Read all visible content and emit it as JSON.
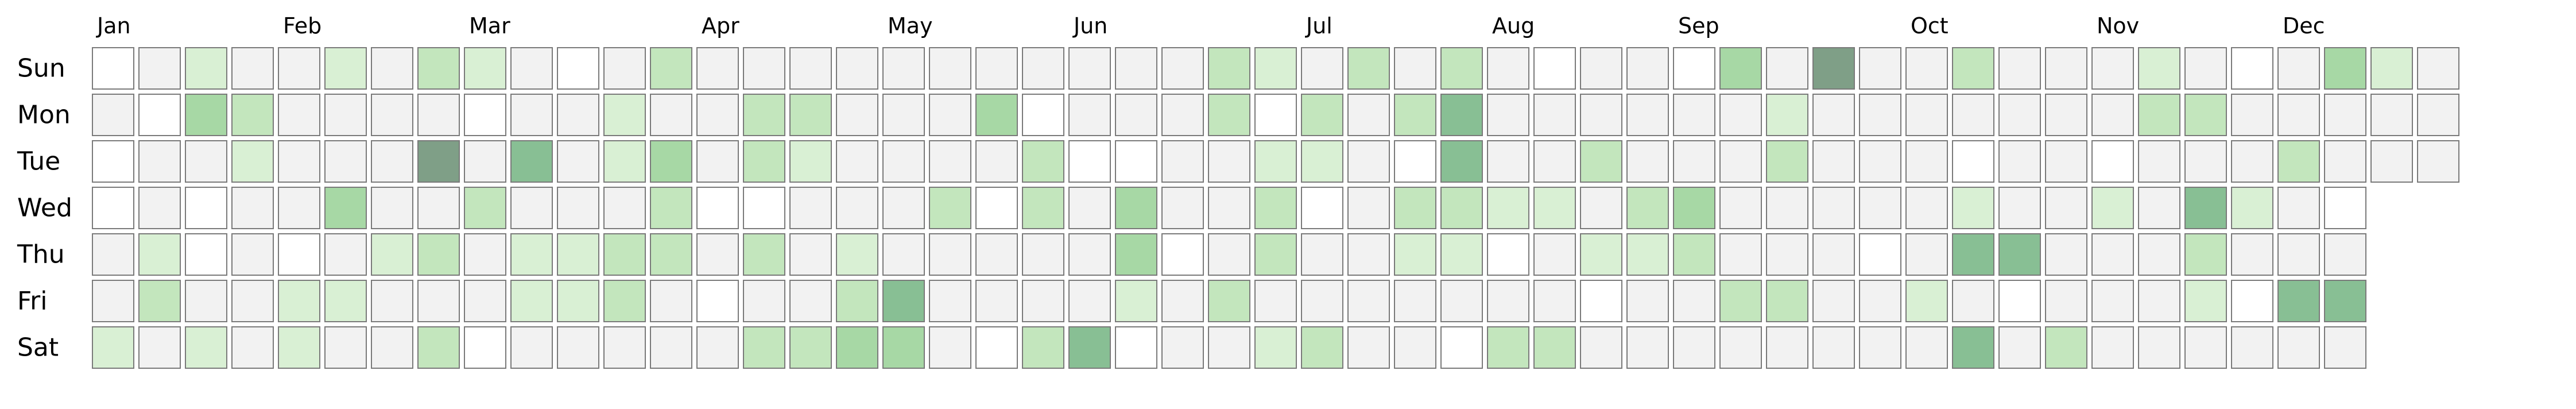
{
  "chart_data": {
    "type": "heatmap",
    "title": "",
    "xlabel": "",
    "ylabel": "",
    "legend": "none",
    "grid": false,
    "months": [
      "Jan",
      "Feb",
      "Mar",
      "Apr",
      "May",
      "Jun",
      "Jul",
      "Aug",
      "Sep",
      "Oct",
      "Nov",
      "Dec"
    ],
    "month_start_weeks": [
      0,
      4,
      8,
      13,
      17,
      21,
      26,
      30,
      34,
      39,
      43,
      47
    ],
    "days": [
      "Sun",
      "Mon",
      "Tue",
      "Wed",
      "Thu",
      "Fri",
      "Sat"
    ],
    "value_range": [
      0,
      6
    ],
    "colors": [
      "#f2f2f2",
      "#ffffff",
      "#eaf6e8",
      "#d9f0d4",
      "#c3e6bd",
      "#a7d8a5",
      "#88bf94",
      "#7f9f87"
    ],
    "empty_value": -1,
    "weeks": [
      [
        -1,
        0,
        -1,
        -1,
        0,
        0,
        2
      ],
      [
        0,
        -1,
        0,
        0,
        2,
        3,
        0
      ],
      [
        2,
        4,
        0,
        -1,
        -1,
        0,
        2
      ],
      [
        0,
        3,
        2,
        0,
        0,
        0,
        0
      ],
      [
        0,
        0,
        0,
        0,
        -1,
        2,
        2
      ],
      [
        2,
        0,
        0,
        4,
        0,
        2,
        0
      ],
      [
        0,
        0,
        0,
        0,
        2,
        0,
        0
      ],
      [
        3,
        0,
        6,
        0,
        3,
        0,
        3
      ],
      [
        2,
        -1,
        0,
        3,
        0,
        0,
        -1
      ],
      [
        0,
        0,
        5,
        0,
        2,
        2,
        0
      ],
      [
        -1,
        0,
        0,
        0,
        2,
        2,
        0
      ],
      [
        0,
        2,
        2,
        0,
        3,
        3,
        0
      ],
      [
        3,
        0,
        4,
        3,
        3,
        0,
        0
      ],
      [
        0,
        0,
        0,
        -1,
        0,
        -1,
        0
      ],
      [
        0,
        3,
        3,
        -1,
        3,
        0,
        3
      ],
      [
        0,
        3,
        2,
        0,
        0,
        0,
        3
      ],
      [
        0,
        0,
        0,
        0,
        2,
        3,
        4
      ],
      [
        0,
        0,
        0,
        0,
        0,
        5,
        4
      ],
      [
        0,
        0,
        0,
        3,
        0,
        0,
        0
      ],
      [
        0,
        4,
        0,
        -1,
        0,
        0,
        -1
      ],
      [
        0,
        -1,
        3,
        3,
        0,
        0,
        3
      ],
      [
        0,
        0,
        -1,
        0,
        0,
        0,
        5
      ],
      [
        0,
        0,
        -1,
        4,
        4,
        2,
        -1
      ],
      [
        0,
        0,
        0,
        0,
        -1,
        0,
        0
      ],
      [
        3,
        3,
        0,
        0,
        0,
        3,
        0
      ],
      [
        2,
        -1,
        2,
        3,
        3,
        0,
        2
      ],
      [
        0,
        3,
        2,
        -1,
        0,
        0,
        3
      ],
      [
        3,
        0,
        0,
        0,
        0,
        0,
        0
      ],
      [
        0,
        3,
        -1,
        3,
        2,
        0,
        0
      ],
      [
        3,
        5,
        5,
        3,
        2,
        0,
        -1
      ],
      [
        0,
        0,
        0,
        2,
        -1,
        0,
        3
      ],
      [
        -1,
        0,
        0,
        2,
        0,
        0,
        3
      ],
      [
        0,
        0,
        3,
        0,
        2,
        -1,
        0
      ],
      [
        0,
        0,
        0,
        3,
        2,
        0,
        0
      ],
      [
        -1,
        0,
        0,
        4,
        3,
        0,
        0
      ],
      [
        4,
        0,
        0,
        0,
        0,
        3,
        0
      ],
      [
        0,
        2,
        3,
        0,
        0,
        3,
        0
      ],
      [
        6,
        0,
        0,
        0,
        0,
        0,
        0
      ],
      [
        0,
        0,
        0,
        0,
        -1,
        0,
        0
      ],
      [
        0,
        0,
        0,
        0,
        0,
        2,
        0
      ],
      [
        3,
        0,
        -1,
        2,
        5,
        0,
        5
      ],
      [
        0,
        0,
        0,
        0,
        5,
        -1,
        0
      ],
      [
        0,
        0,
        0,
        0,
        0,
        0,
        3
      ],
      [
        0,
        0,
        -1,
        2,
        0,
        0,
        0
      ],
      [
        2,
        3,
        0,
        0,
        0,
        0,
        0
      ],
      [
        0,
        3,
        0,
        5,
        3,
        2,
        0
      ],
      [
        -1,
        0,
        0,
        2,
        0,
        -1,
        0
      ],
      [
        0,
        0,
        3,
        0,
        0,
        5,
        0
      ],
      [
        4,
        0,
        0,
        -1,
        0,
        5,
        0
      ],
      [
        2,
        0,
        0,
        null,
        null,
        null,
        null
      ],
      [
        0,
        0,
        0,
        null,
        null,
        null,
        null
      ]
    ]
  }
}
